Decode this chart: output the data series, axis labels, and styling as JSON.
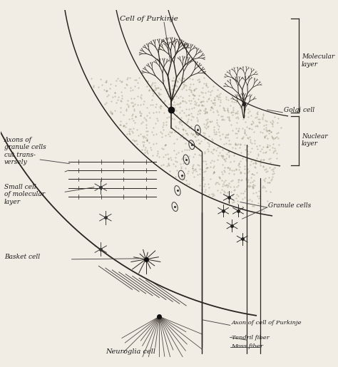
{
  "background_color": "#f2ede4",
  "line_color": "#2a2320",
  "text_color": "#1a1a1a",
  "label_fontsize": 6.5,
  "labels": {
    "cell_of_purkinje_top": "Cell of Purkinje",
    "molecular_layer": "Molecular\nlayer",
    "golgi_cell": "Golgi cell",
    "nuclear_layer": "Nuclear\nlayer",
    "granule_cells": "Granule cells",
    "axons_of_granule": "Axons of\ngranule cells\ncut trans-\nversely",
    "small_cell": "Small cell\nof molecular\nlayer",
    "basket_cell": "Basket cell",
    "neuroglia_cell": "Neuroglia cell",
    "axon_of_purkinje": "Axon of cell of Purkinje",
    "tendril_fiber": "Tendril fiber",
    "moss_fiber": "Moss fiber"
  }
}
